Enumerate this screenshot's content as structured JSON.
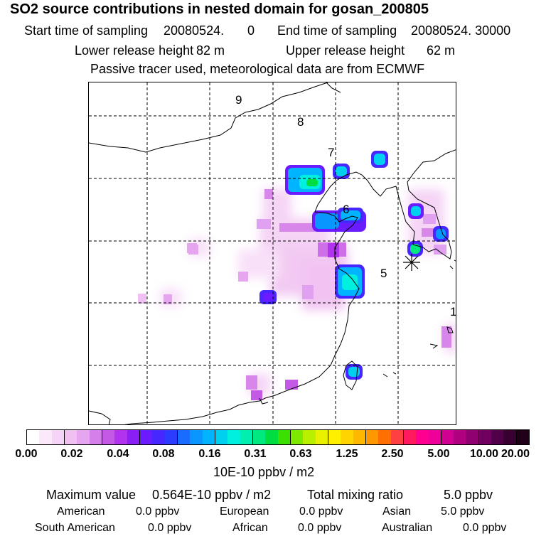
{
  "header": {
    "title": "SO2 source contributions in nested domain for gosan_200805",
    "start_label": "Start time of sampling",
    "start_value": "20080524.",
    "start_seconds": "0",
    "end_label": "End time of sampling",
    "end_value": "20080524. 30000",
    "lower_label": "Lower release height",
    "lower_value": "82 m",
    "upper_label": "Upper release height",
    "upper_value": "62 m",
    "tracer_note": "Passive tracer used, meteorological data are from ECMWF"
  },
  "map": {
    "region_labels": [
      "9",
      "8",
      "7",
      "6",
      "5",
      "1"
    ],
    "receptor_marker": "asterisk-icon"
  },
  "colorbar": {
    "colors": [
      "#ffffff",
      "#fbe8fb",
      "#f6d4f7",
      "#f0c0f3",
      "#e6a6ef",
      "#d57fea",
      "#c459e6",
      "#b233ef",
      "#8a1ff5",
      "#6b1bff",
      "#4627ff",
      "#2c3cff",
      "#1a6bff",
      "#0a96ff",
      "#00b4ff",
      "#00d0f0",
      "#00f0e0",
      "#00eeb0",
      "#00e880",
      "#00dd40",
      "#3ce000",
      "#7de800",
      "#b8f000",
      "#e8f200",
      "#fff000",
      "#ffd400",
      "#ffb800",
      "#ff9800",
      "#ff7000",
      "#ff4040",
      "#ff1a60",
      "#ff0090",
      "#f0009a",
      "#d00090",
      "#b00080",
      "#900070",
      "#700060",
      "#500048",
      "#380030",
      "#200018"
    ],
    "ticks": [
      "0.00",
      "0.02",
      "0.04",
      "0.08",
      "0.16",
      "0.31",
      "0.63",
      "1.25",
      "2.50",
      "5.00",
      "10.00",
      "20.00"
    ],
    "unit": "10E-10 ppbv / m2"
  },
  "footer": {
    "max_label": "Maximum value",
    "max_value": "0.564E-10 ppbv / m2",
    "total_label": "Total mixing ratio",
    "total_value": "5.0 ppbv",
    "regions": [
      {
        "name": "American",
        "value": "0.0 ppbv"
      },
      {
        "name": "European",
        "value": "0.0 ppbv"
      },
      {
        "name": "Asian",
        "value": "5.0 ppbv"
      },
      {
        "name": "South American",
        "value": "0.0 ppbv"
      },
      {
        "name": "African",
        "value": "0.0 ppbv"
      },
      {
        "name": "Australian",
        "value": "0.0 ppbv"
      }
    ]
  }
}
